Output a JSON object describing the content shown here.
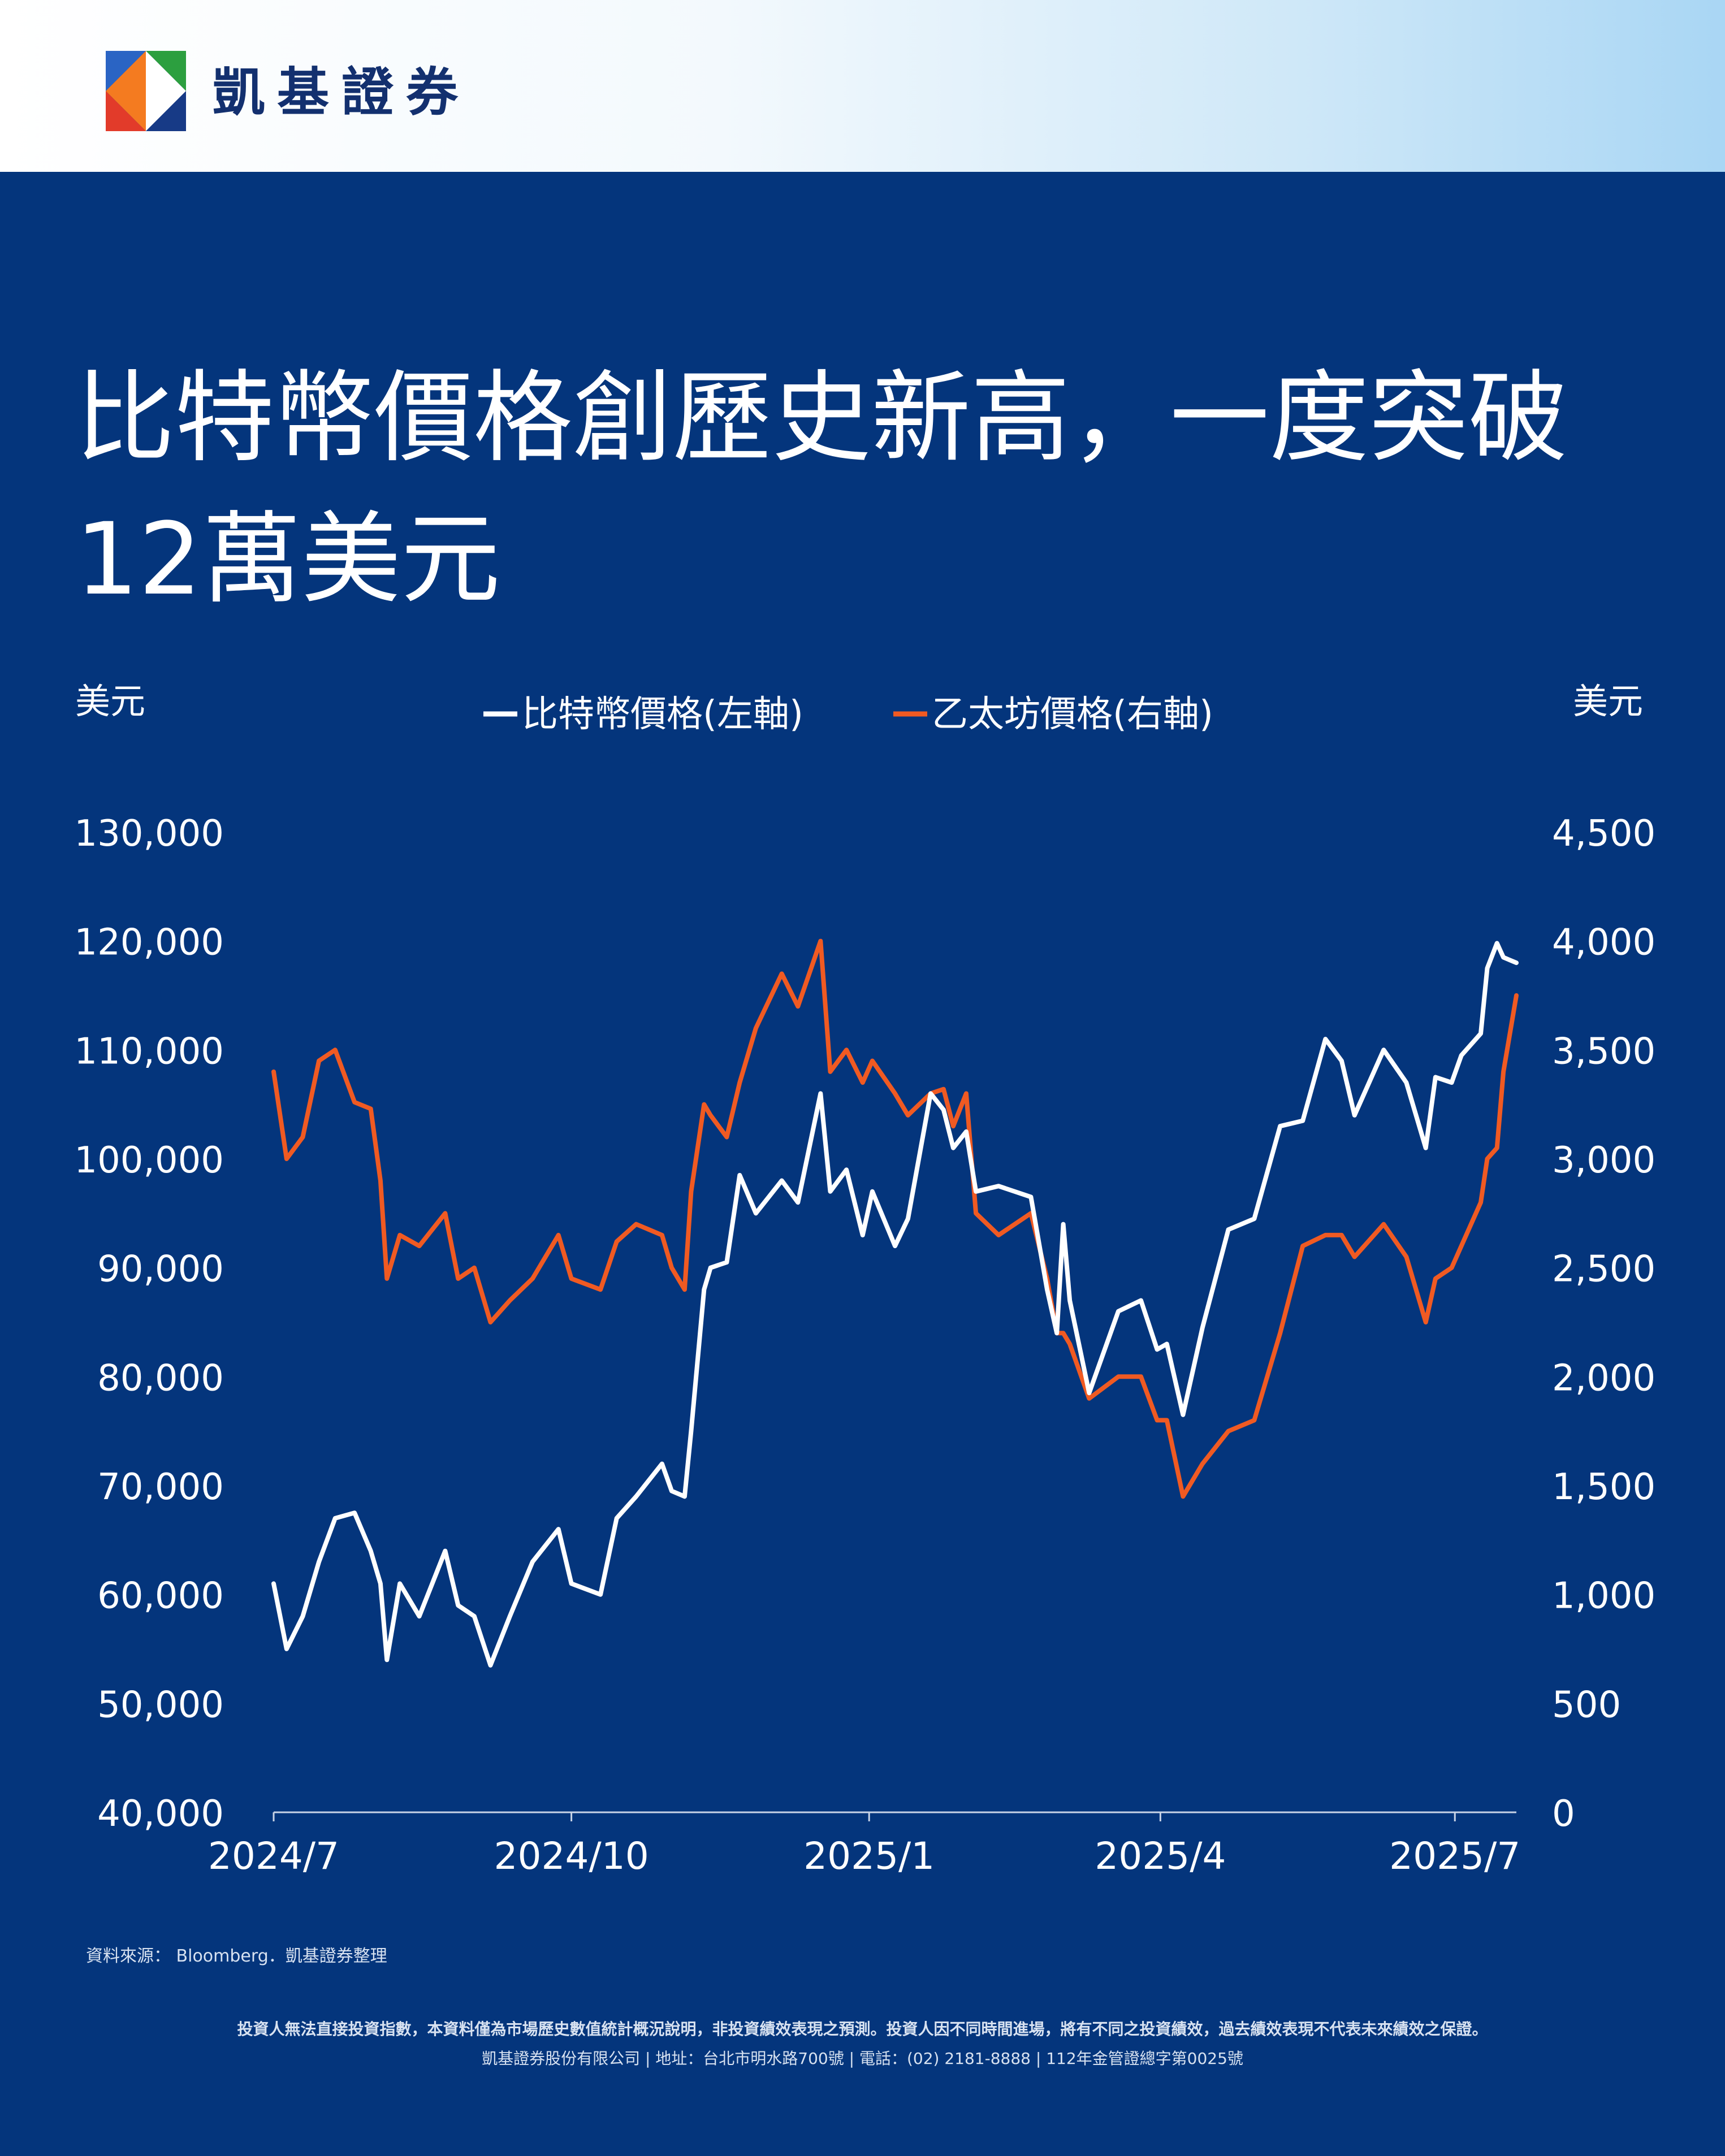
{
  "brand": {
    "name": "凱基證券"
  },
  "title": "比特幣價格創歷史新高，一度突破12萬美元",
  "colors": {
    "background": "#04357c",
    "btc": "#ffffff",
    "eth": "#f05a22"
  },
  "chart_data": {
    "type": "line",
    "left_unit": "美元",
    "right_unit": "美元",
    "left_axis": {
      "min": 40000,
      "max": 130000,
      "ticks": [
        "130,000",
        "120,000",
        "110,000",
        "100,000",
        "90,000",
        "80,000",
        "70,000",
        "60,000",
        "50,000",
        "40,000"
      ]
    },
    "right_axis": {
      "min": 0,
      "max": 4500,
      "ticks": [
        "4,500",
        "4,000",
        "3,500",
        "3,000",
        "2,500",
        "2,000",
        "1,500",
        "1,000",
        "500",
        "0"
      ]
    },
    "x_axis": {
      "start": "2024-07-01",
      "end": "2025-07-20",
      "ticks": [
        {
          "date": "2024-07-01",
          "label": "2024/7"
        },
        {
          "date": "2024-10-01",
          "label": "2024/10"
        },
        {
          "date": "2025-01-01",
          "label": "2025/1"
        },
        {
          "date": "2025-04-01",
          "label": "2025/4"
        },
        {
          "date": "2025-07-01",
          "label": "2025/7"
        }
      ]
    },
    "series": [
      {
        "name": "比特幣價格(左軸)",
        "axis": "left",
        "color": "#ffffff",
        "points": [
          [
            "2024-07-01",
            61000
          ],
          [
            "2024-07-05",
            55000
          ],
          [
            "2024-07-10",
            58000
          ],
          [
            "2024-07-15",
            63000
          ],
          [
            "2024-07-20",
            67000
          ],
          [
            "2024-07-26",
            67500
          ],
          [
            "2024-07-31",
            64000
          ],
          [
            "2024-08-03",
            61000
          ],
          [
            "2024-08-05",
            54000
          ],
          [
            "2024-08-09",
            61000
          ],
          [
            "2024-08-15",
            58000
          ],
          [
            "2024-08-23",
            64000
          ],
          [
            "2024-08-27",
            59000
          ],
          [
            "2024-09-01",
            58000
          ],
          [
            "2024-09-06",
            53500
          ],
          [
            "2024-09-12",
            58000
          ],
          [
            "2024-09-19",
            63000
          ],
          [
            "2024-09-27",
            66000
          ],
          [
            "2024-10-01",
            61000
          ],
          [
            "2024-10-10",
            60000
          ],
          [
            "2024-10-15",
            67000
          ],
          [
            "2024-10-21",
            69000
          ],
          [
            "2024-10-29",
            72000
          ],
          [
            "2024-11-01",
            69500
          ],
          [
            "2024-11-05",
            69000
          ],
          [
            "2024-11-07",
            75000
          ],
          [
            "2024-11-11",
            88000
          ],
          [
            "2024-11-13",
            90000
          ],
          [
            "2024-11-18",
            90500
          ],
          [
            "2024-11-22",
            98500
          ],
          [
            "2024-11-27",
            95000
          ],
          [
            "2024-12-05",
            98000
          ],
          [
            "2024-12-10",
            96000
          ],
          [
            "2024-12-17",
            106000
          ],
          [
            "2024-12-20",
            97000
          ],
          [
            "2024-12-25",
            99000
          ],
          [
            "2024-12-30",
            93000
          ],
          [
            "2025-01-02",
            97000
          ],
          [
            "2025-01-09",
            92000
          ],
          [
            "2025-01-13",
            94500
          ],
          [
            "2025-01-20",
            106000
          ],
          [
            "2025-01-24",
            104500
          ],
          [
            "2025-01-27",
            101000
          ],
          [
            "2025-01-31",
            102500
          ],
          [
            "2025-02-03",
            97000
          ],
          [
            "2025-02-10",
            97500
          ],
          [
            "2025-02-20",
            96500
          ],
          [
            "2025-02-25",
            88000
          ],
          [
            "2025-02-28",
            84000
          ],
          [
            "2025-03-02",
            94000
          ],
          [
            "2025-03-04",
            87000
          ],
          [
            "2025-03-10",
            78500
          ],
          [
            "2025-03-19",
            86000
          ],
          [
            "2025-03-26",
            87000
          ],
          [
            "2025-03-31",
            82500
          ],
          [
            "2025-04-03",
            83000
          ],
          [
            "2025-04-08",
            76500
          ],
          [
            "2025-04-14",
            84500
          ],
          [
            "2025-04-22",
            93500
          ],
          [
            "2025-04-30",
            94500
          ],
          [
            "2025-05-08",
            103000
          ],
          [
            "2025-05-15",
            103500
          ],
          [
            "2025-05-22",
            111000
          ],
          [
            "2025-05-27",
            109000
          ],
          [
            "2025-05-31",
            104000
          ],
          [
            "2025-06-09",
            110000
          ],
          [
            "2025-06-16",
            107000
          ],
          [
            "2025-06-22",
            101000
          ],
          [
            "2025-06-25",
            107500
          ],
          [
            "2025-06-30",
            107000
          ],
          [
            "2025-07-03",
            109500
          ],
          [
            "2025-07-09",
            111500
          ],
          [
            "2025-07-11",
            117500
          ],
          [
            "2025-07-14",
            119800
          ],
          [
            "2025-07-16",
            118500
          ],
          [
            "2025-07-20",
            118000
          ]
        ]
      },
      {
        "name": "乙太坊價格(右軸)",
        "axis": "right",
        "color": "#f05a22",
        "points": [
          [
            "2024-07-01",
            3400
          ],
          [
            "2024-07-05",
            3000
          ],
          [
            "2024-07-10",
            3100
          ],
          [
            "2024-07-15",
            3450
          ],
          [
            "2024-07-20",
            3500
          ],
          [
            "2024-07-26",
            3260
          ],
          [
            "2024-07-31",
            3230
          ],
          [
            "2024-08-03",
            2900
          ],
          [
            "2024-08-05",
            2450
          ],
          [
            "2024-08-09",
            2650
          ],
          [
            "2024-08-15",
            2600
          ],
          [
            "2024-08-23",
            2750
          ],
          [
            "2024-08-27",
            2450
          ],
          [
            "2024-09-01",
            2500
          ],
          [
            "2024-09-06",
            2250
          ],
          [
            "2024-09-12",
            2350
          ],
          [
            "2024-09-19",
            2450
          ],
          [
            "2024-09-27",
            2650
          ],
          [
            "2024-10-01",
            2450
          ],
          [
            "2024-10-10",
            2400
          ],
          [
            "2024-10-15",
            2620
          ],
          [
            "2024-10-21",
            2700
          ],
          [
            "2024-10-29",
            2650
          ],
          [
            "2024-11-01",
            2500
          ],
          [
            "2024-11-05",
            2400
          ],
          [
            "2024-11-07",
            2850
          ],
          [
            "2024-11-11",
            3250
          ],
          [
            "2024-11-13",
            3200
          ],
          [
            "2024-11-18",
            3100
          ],
          [
            "2024-11-22",
            3350
          ],
          [
            "2024-11-27",
            3600
          ],
          [
            "2024-12-05",
            3850
          ],
          [
            "2024-12-10",
            3700
          ],
          [
            "2024-12-17",
            4000
          ],
          [
            "2024-12-20",
            3400
          ],
          [
            "2024-12-25",
            3500
          ],
          [
            "2024-12-30",
            3350
          ],
          [
            "2025-01-02",
            3450
          ],
          [
            "2025-01-09",
            3300
          ],
          [
            "2025-01-13",
            3200
          ],
          [
            "2025-01-20",
            3300
          ],
          [
            "2025-01-24",
            3320
          ],
          [
            "2025-01-27",
            3150
          ],
          [
            "2025-01-31",
            3300
          ],
          [
            "2025-02-03",
            2750
          ],
          [
            "2025-02-10",
            2650
          ],
          [
            "2025-02-20",
            2750
          ],
          [
            "2025-02-25",
            2450
          ],
          [
            "2025-02-28",
            2200
          ],
          [
            "2025-03-02",
            2200
          ],
          [
            "2025-03-04",
            2150
          ],
          [
            "2025-03-10",
            1900
          ],
          [
            "2025-03-19",
            2000
          ],
          [
            "2025-03-26",
            2000
          ],
          [
            "2025-03-31",
            1800
          ],
          [
            "2025-04-03",
            1800
          ],
          [
            "2025-04-08",
            1450
          ],
          [
            "2025-04-14",
            1600
          ],
          [
            "2025-04-22",
            1750
          ],
          [
            "2025-04-30",
            1800
          ],
          [
            "2025-05-08",
            2200
          ],
          [
            "2025-05-15",
            2600
          ],
          [
            "2025-05-22",
            2650
          ],
          [
            "2025-05-27",
            2650
          ],
          [
            "2025-05-31",
            2550
          ],
          [
            "2025-06-09",
            2700
          ],
          [
            "2025-06-16",
            2550
          ],
          [
            "2025-06-22",
            2250
          ],
          [
            "2025-06-25",
            2450
          ],
          [
            "2025-06-30",
            2500
          ],
          [
            "2025-07-03",
            2600
          ],
          [
            "2025-07-09",
            2800
          ],
          [
            "2025-07-11",
            3000
          ],
          [
            "2025-07-14",
            3050
          ],
          [
            "2025-07-16",
            3400
          ],
          [
            "2025-07-20",
            3750
          ]
        ]
      }
    ]
  },
  "source": "資料來源： Bloomberg．凱基證券整理",
  "disclaimer": "投資人無法直接投資指數，本資料僅為市場歷史數值統計概況說明，非投資績效表現之預測。投資人因不同時間進場，將有不同之投資績效，過去績效表現不代表未來績效之保證。",
  "footer": "凱基證券股份有限公司 | 地址：台北市明水路700號 | 電話：(02) 2181-8888 | 112年金管證總字第0025號"
}
